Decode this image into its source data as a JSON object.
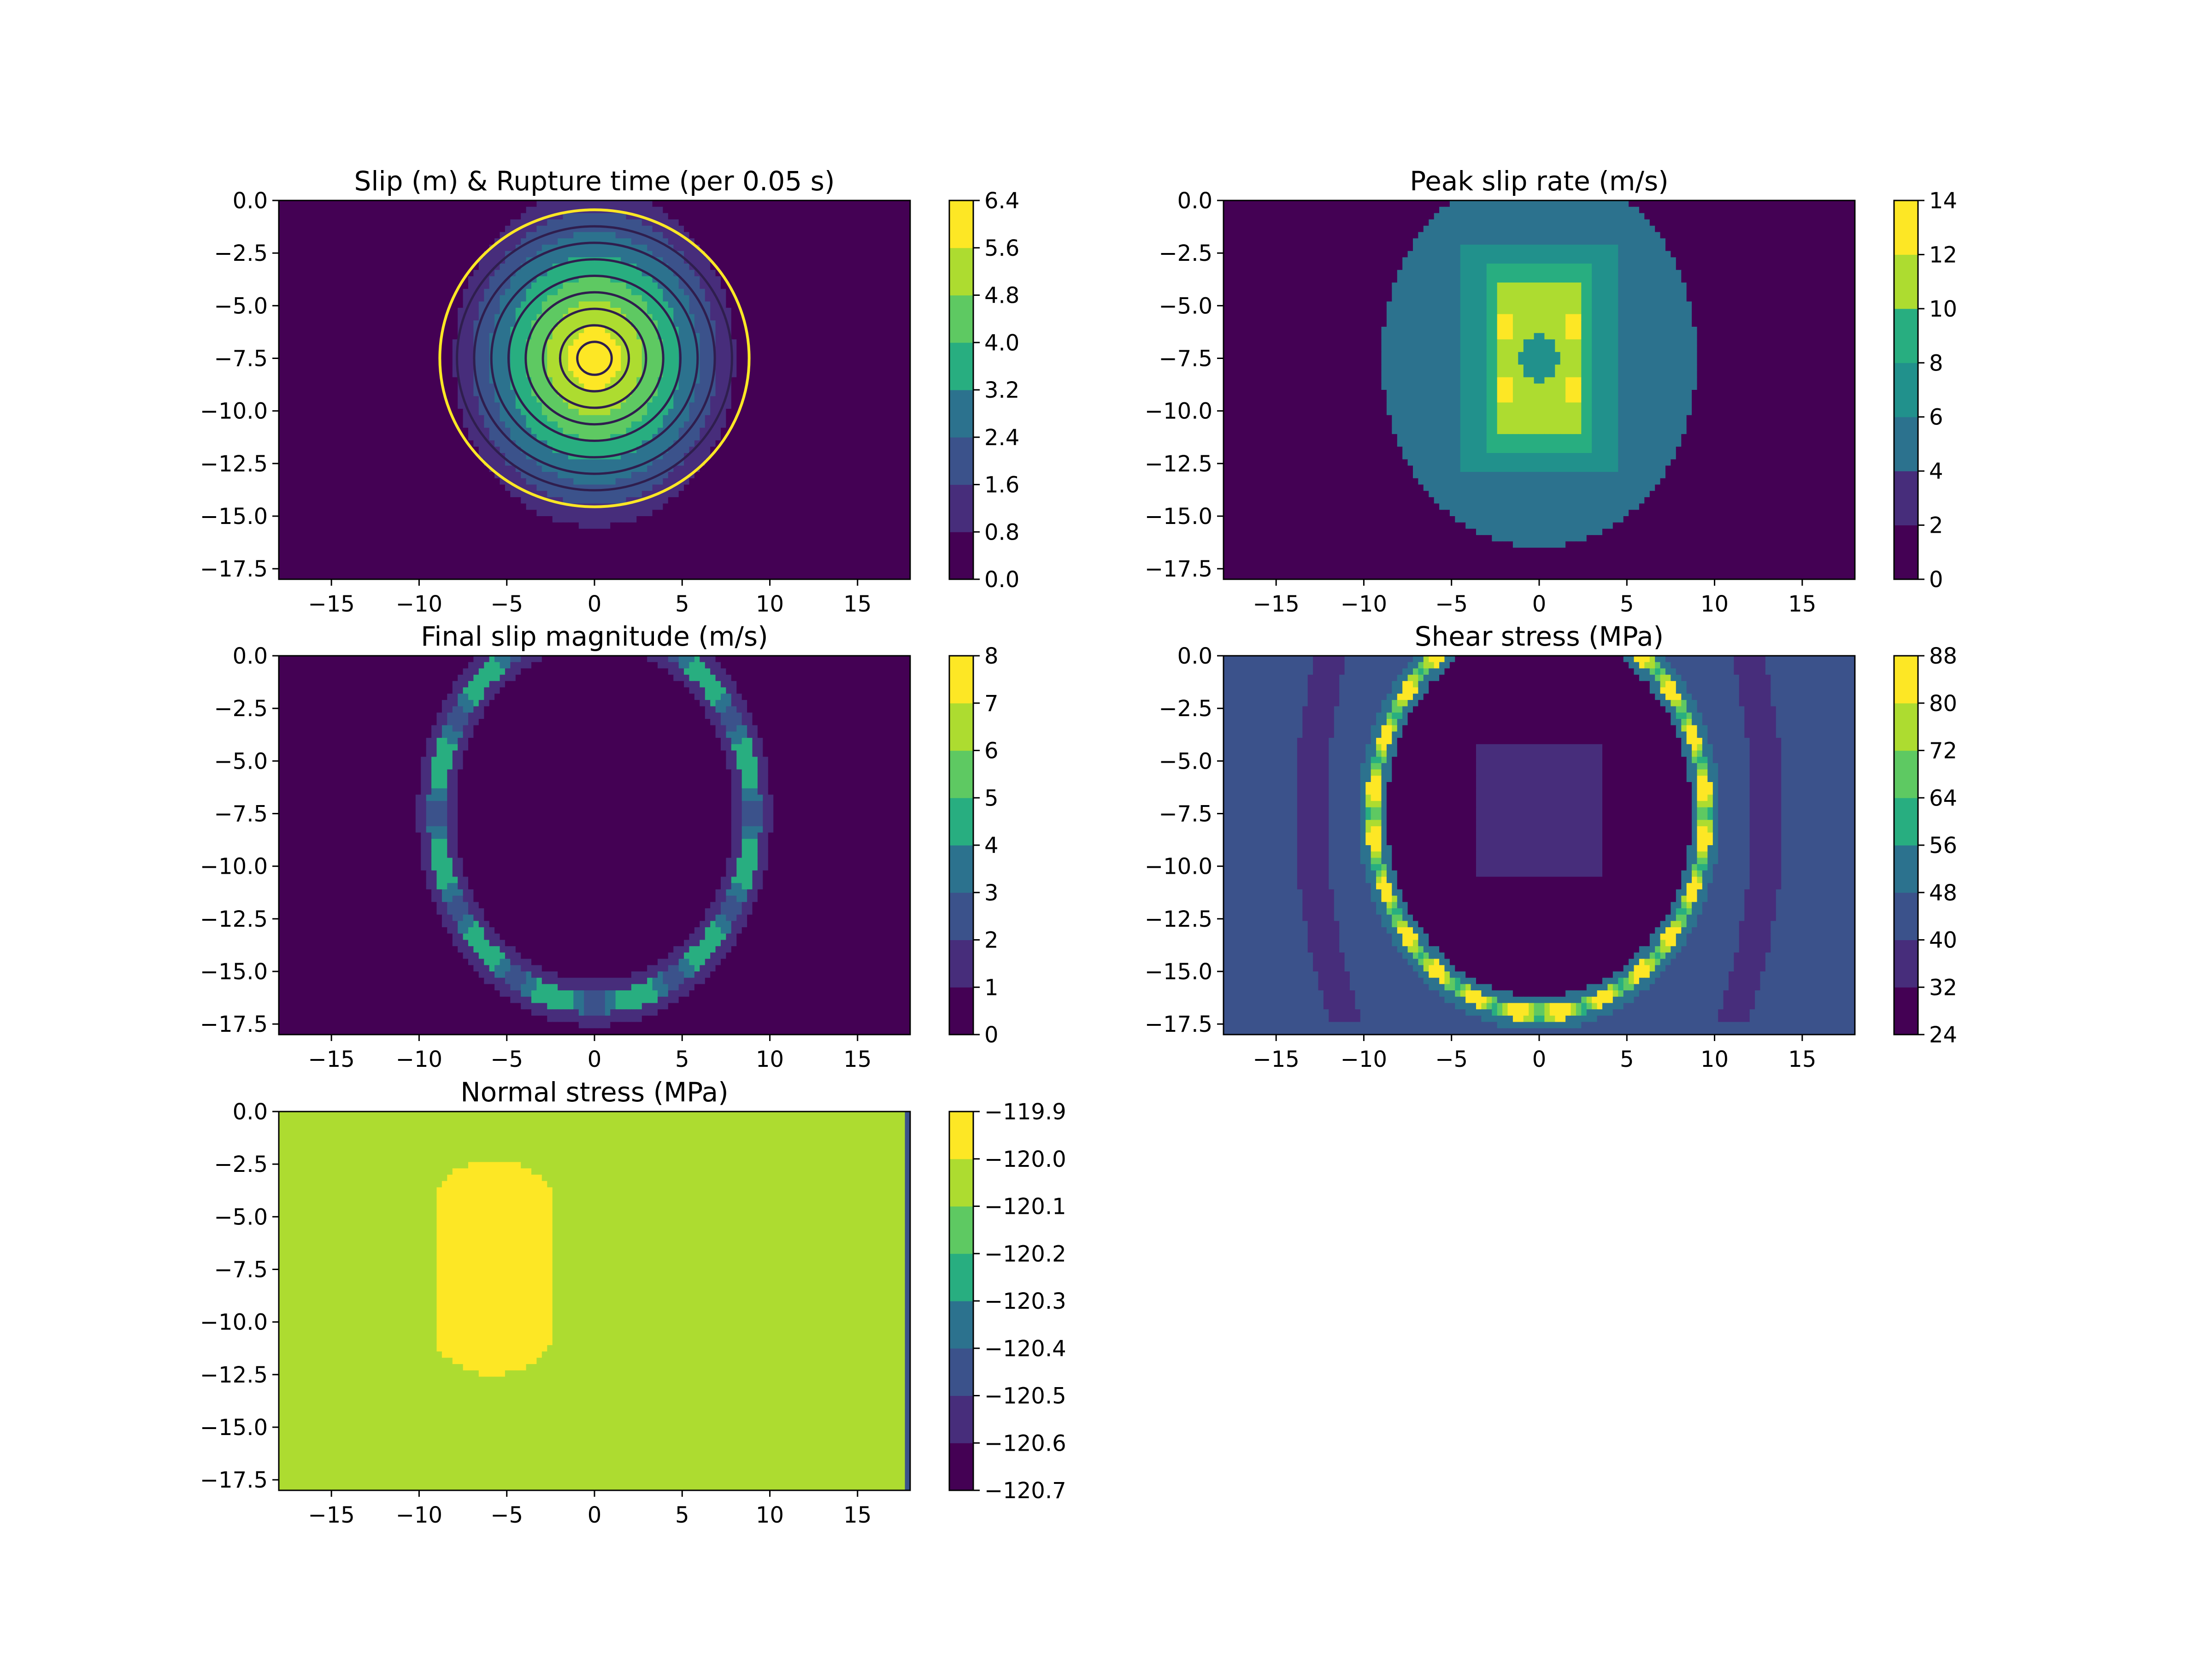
{
  "chart_data": [
    {
      "type": "heatmap",
      "title": "Slip (m) & Rupture time (per 0.05 s)",
      "xlim": [
        -18,
        18
      ],
      "ylim": [
        -18,
        0
      ],
      "x_ticks": [
        -15,
        -10,
        -5,
        0,
        5,
        10,
        15
      ],
      "x_tick_labels": [
        "−15",
        "−10",
        "−5",
        "0",
        "5",
        "10",
        "15"
      ],
      "y_ticks": [
        0,
        -2.5,
        -5,
        -7.5,
        -10,
        -12.5,
        -15,
        -17.5
      ],
      "y_tick_labels": [
        "0.0",
        "−2.5",
        "−5.0",
        "−7.5",
        "−10.0",
        "−12.5",
        "−15.0",
        "−17.5"
      ],
      "colorbar": {
        "ticks": [
          0,
          0.8,
          1.6,
          2.4,
          3.2,
          4.0,
          4.8,
          5.6,
          6.4
        ],
        "tick_labels": [
          "0.0",
          "0.8",
          "1.6",
          "2.4",
          "3.2",
          "4.0",
          "4.8",
          "5.6",
          "6.4"
        ]
      },
      "field": {
        "kind": "slip",
        "cx": 0,
        "cy": -7.5,
        "radius": 9,
        "peak": 6.4
      },
      "rupture_front_contours": {
        "count": 9,
        "color": "#fde725"
      }
    },
    {
      "type": "heatmap",
      "title": "Peak slip rate (m/s)",
      "xlim": [
        -18,
        18
      ],
      "ylim": [
        -18,
        0
      ],
      "x_ticks": [
        -15,
        -10,
        -5,
        0,
        5,
        10,
        15
      ],
      "x_tick_labels": [
        "−15",
        "−10",
        "−5",
        "0",
        "5",
        "10",
        "15"
      ],
      "y_ticks": [
        0,
        -2.5,
        -5,
        -7.5,
        -10,
        -12.5,
        -15,
        -17.5
      ],
      "y_tick_labels": [
        "0.0",
        "−2.5",
        "−5.0",
        "−7.5",
        "−10.0",
        "−12.5",
        "−15.0",
        "−17.5"
      ],
      "colorbar": {
        "ticks": [
          0,
          2,
          4,
          6,
          8,
          10,
          12,
          14
        ],
        "tick_labels": [
          "0",
          "2",
          "4",
          "6",
          "8",
          "10",
          "12",
          "14"
        ]
      },
      "field": {
        "kind": "peakrate",
        "cx": 0,
        "cy": -7.5,
        "radius": 9
      }
    },
    {
      "type": "heatmap",
      "title": "Final slip magnitude (m/s)",
      "xlim": [
        -18,
        18
      ],
      "ylim": [
        -18,
        0
      ],
      "x_ticks": [
        -15,
        -10,
        -5,
        0,
        5,
        10,
        15
      ],
      "x_tick_labels": [
        "−15",
        "−10",
        "−5",
        "0",
        "5",
        "10",
        "15"
      ],
      "y_ticks": [
        0,
        -2.5,
        -5,
        -7.5,
        -10,
        -12.5,
        -15,
        -17.5
      ],
      "y_tick_labels": [
        "0.0",
        "−2.5",
        "−5.0",
        "−7.5",
        "−10.0",
        "−12.5",
        "−15.0",
        "−17.5"
      ],
      "colorbar": {
        "ticks": [
          0,
          1,
          2,
          3,
          4,
          5,
          6,
          7,
          8
        ],
        "tick_labels": [
          "0",
          "1",
          "2",
          "3",
          "4",
          "5",
          "6",
          "7",
          "8"
        ]
      },
      "field": {
        "kind": "ring",
        "cx": 0,
        "cy": -7.5,
        "radius": 9
      }
    },
    {
      "type": "heatmap",
      "title": "Shear stress (MPa)",
      "xlim": [
        -18,
        18
      ],
      "ylim": [
        -18,
        0
      ],
      "x_ticks": [
        -15,
        -10,
        -5,
        0,
        5,
        10,
        15
      ],
      "x_tick_labels": [
        "−15",
        "−10",
        "−5",
        "0",
        "5",
        "10",
        "15"
      ],
      "y_ticks": [
        0,
        -2.5,
        -5,
        -7.5,
        -10,
        -12.5,
        -15,
        -17.5
      ],
      "y_tick_labels": [
        "0.0",
        "−2.5",
        "−5.0",
        "−7.5",
        "−10.0",
        "−12.5",
        "−15.0",
        "−17.5"
      ],
      "colorbar": {
        "ticks": [
          24,
          32,
          40,
          48,
          56,
          64,
          72,
          80,
          88
        ],
        "tick_labels": [
          "24",
          "32",
          "40",
          "48",
          "56",
          "64",
          "72",
          "80",
          "88"
        ]
      },
      "field": {
        "kind": "shear",
        "cx": 0,
        "cy": -7.5,
        "radius": 9.5
      }
    },
    {
      "type": "heatmap",
      "title": "Normal stress (MPa)",
      "xlim": [
        -18,
        18
      ],
      "ylim": [
        -18,
        0
      ],
      "x_ticks": [
        -15,
        -10,
        -5,
        0,
        5,
        10,
        15
      ],
      "x_tick_labels": [
        "−15",
        "−10",
        "−5",
        "0",
        "5",
        "10",
        "15"
      ],
      "y_ticks": [
        0,
        -2.5,
        -5,
        -7.5,
        -10,
        -12.5,
        -15,
        -17.5
      ],
      "y_tick_labels": [
        "0.0",
        "−2.5",
        "−5.0",
        "−7.5",
        "−10.0",
        "−12.5",
        "−15.0",
        "−17.5"
      ],
      "colorbar": {
        "ticks": [
          -120.7,
          -120.6,
          -120.5,
          -120.4,
          -120.3,
          -120.2,
          -120.1,
          -120.0,
          -119.9
        ],
        "tick_labels": [
          "−120.7",
          "−120.6",
          "−120.5",
          "−120.4",
          "−120.3",
          "−120.2",
          "−120.1",
          "−120.0",
          "−119.9"
        ]
      },
      "field": {
        "kind": "normal",
        "background": -120.05,
        "patch_value": -119.95,
        "patch_x": [
          -9,
          -2.5
        ],
        "patch_y": [
          -12.5,
          -2.3
        ]
      }
    }
  ],
  "colors": {
    "palette": [
      "#440154",
      "#472d7b",
      "#3b528b",
      "#2c728e",
      "#21918c",
      "#28ae80",
      "#5ec962",
      "#addc30",
      "#fde725"
    ]
  }
}
